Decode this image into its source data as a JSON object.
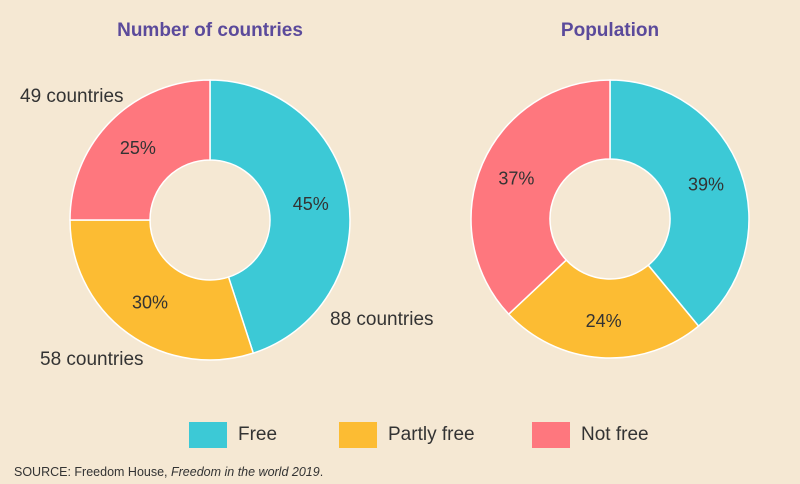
{
  "colors": {
    "free": "#3cc9d6",
    "partly_free": "#fcbc33",
    "not_free": "#fe777e",
    "title": "#5b4a9b",
    "background": "#f5e8d3"
  },
  "chart_data": [
    {
      "type": "pie",
      "variant": "donut",
      "title": "Number of countries",
      "categories": [
        "Free",
        "Partly free",
        "Not free"
      ],
      "values": [
        45,
        30,
        25
      ],
      "value_labels": [
        "45%",
        "30%",
        "25%"
      ],
      "counts": [
        88,
        58,
        49
      ],
      "count_labels": [
        "88 countries",
        "58 countries",
        "49 countries"
      ]
    },
    {
      "type": "pie",
      "variant": "donut",
      "title": "Population",
      "categories": [
        "Free",
        "Partly free",
        "Not free"
      ],
      "values": [
        39,
        24,
        37
      ],
      "value_labels": [
        "39%",
        "24%",
        "37%"
      ]
    }
  ],
  "legend": [
    {
      "label": "Free",
      "color": "#3cc9d6"
    },
    {
      "label": "Partly free",
      "color": "#fcbc33"
    },
    {
      "label": "Not free",
      "color": "#fe777e"
    }
  ],
  "source": {
    "prefix": "SOURCE: Freedom House, ",
    "title": "Freedom in the world 2019",
    "suffix": "."
  }
}
